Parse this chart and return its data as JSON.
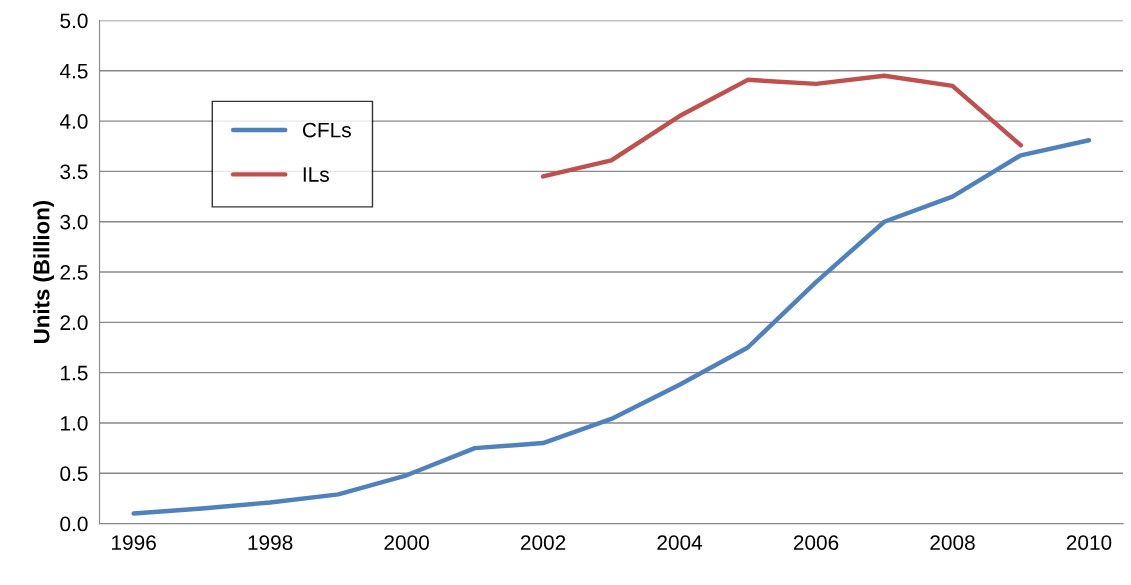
{
  "chart_data": {
    "type": "line",
    "ylabel": "Units (Billion)",
    "x": [
      1996,
      1997,
      1998,
      1999,
      2000,
      2001,
      2002,
      2003,
      2004,
      2005,
      2006,
      2007,
      2008,
      2009,
      2010
    ],
    "series": [
      {
        "name": "CFLs",
        "color": "#4f81bd",
        "values": [
          0.1,
          0.15,
          0.21,
          0.29,
          0.48,
          0.75,
          0.8,
          1.04,
          1.38,
          1.75,
          2.4,
          3.0,
          3.25,
          3.66,
          3.81
        ]
      },
      {
        "name": "ILs",
        "color": "#c0504d",
        "values": [
          null,
          null,
          null,
          null,
          null,
          null,
          3.45,
          3.61,
          4.05,
          4.41,
          4.37,
          4.45,
          4.35,
          3.76,
          null
        ]
      }
    ],
    "xlim": [
      1995.5,
      2010.5
    ],
    "xticks": [
      1996,
      1998,
      2000,
      2002,
      2004,
      2006,
      2008,
      2010
    ],
    "ylim": [
      0,
      5
    ],
    "yticks": [
      {
        "value": 0,
        "label": "0.0"
      },
      {
        "value": 0.5,
        "label": "0.5"
      },
      {
        "value": 1,
        "label": "1.0"
      },
      {
        "value": 1.5,
        "label": "1.5"
      },
      {
        "value": 2,
        "label": "2.0"
      },
      {
        "value": 2.5,
        "label": "2.5"
      },
      {
        "value": 3,
        "label": "3.0"
      },
      {
        "value": 3.5,
        "label": "3.5"
      },
      {
        "value": 4,
        "label": "4.0"
      },
      {
        "value": 4.5,
        "label": "4.5"
      },
      {
        "value": 5,
        "label": "5.0"
      }
    ],
    "grid": "y",
    "legend": "top left",
    "marker": "none",
    "line_style": "solid"
  }
}
